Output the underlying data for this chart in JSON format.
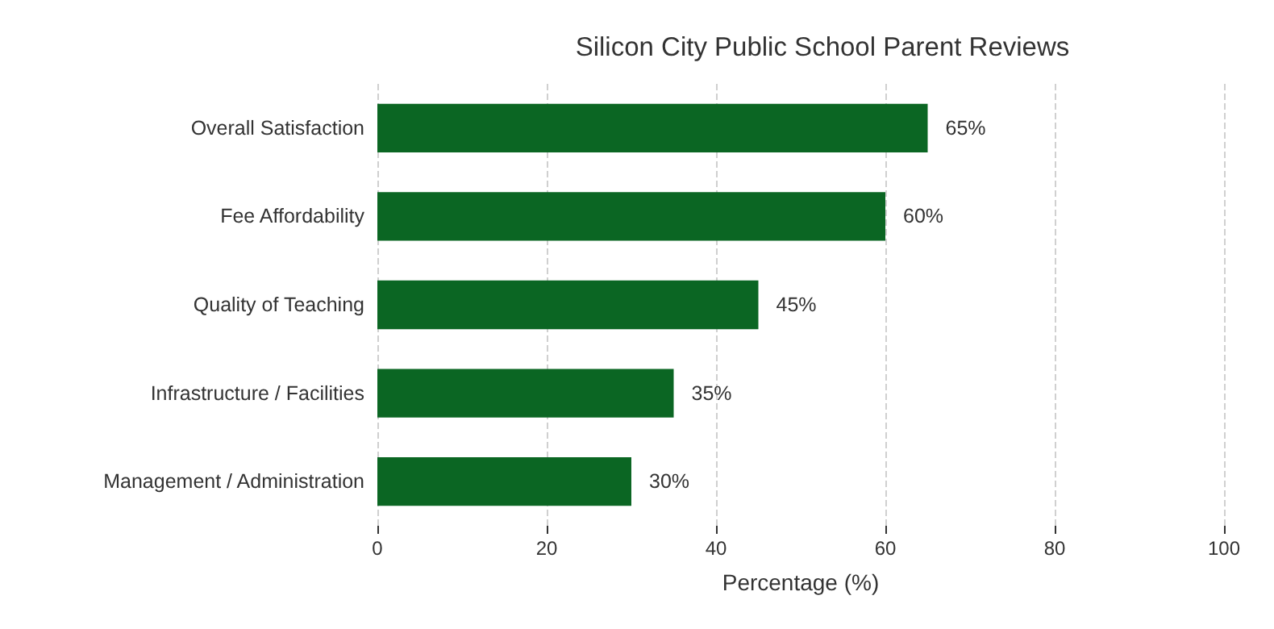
{
  "chart_data": {
    "type": "bar",
    "orientation": "horizontal",
    "title": "Silicon City Public School Parent Reviews",
    "xlabel": "Percentage (%)",
    "categories": [
      "Overall Satisfaction",
      "Fee Affordability",
      "Quality of Teaching",
      "Infrastructure / Facilities",
      "Management / Administration"
    ],
    "values": [
      65,
      60,
      45,
      35,
      30
    ],
    "value_labels": [
      "65%",
      "60%",
      "45%",
      "35%",
      "30%"
    ],
    "color": "#0b6623",
    "xlim": [
      0,
      100
    ],
    "xticks": [
      0,
      20,
      40,
      60,
      80,
      100
    ],
    "grid": "x"
  }
}
